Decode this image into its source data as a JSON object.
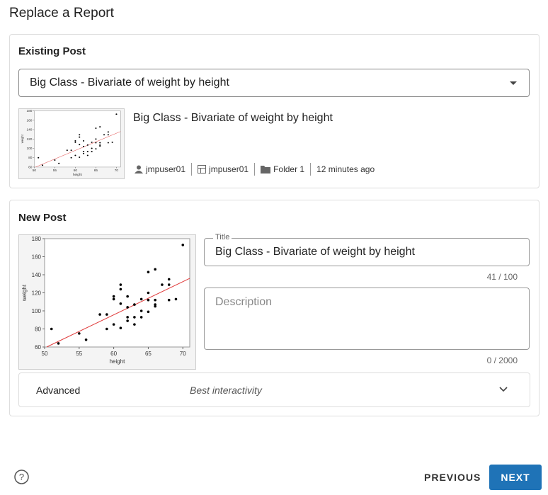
{
  "page": {
    "title": "Replace a Report",
    "existing": {
      "heading": "Existing Post",
      "select_value": "Big Class - Bivariate of weight by height",
      "post_title": "Big Class - Bivariate of weight by height",
      "meta": [
        "jmpuser01",
        "jmpuser01",
        "Folder 1",
        "12 minutes ago"
      ]
    },
    "new": {
      "heading": "New Post",
      "title_label": "Title",
      "title_value": "Big Class - Bivariate of weight by height",
      "title_counter": "41 / 100",
      "description_placeholder": "Description",
      "description_counter": "0 / 2000",
      "advanced": "Advanced",
      "advanced_value": "Best interactivity"
    },
    "buttons": {
      "previous": "PREVIOUS",
      "next": "NEXT"
    }
  },
  "chart_data": {
    "type": "scatter",
    "x_label": "height",
    "y_label": "weight",
    "color": "#000000",
    "x": [
      51,
      52,
      55,
      56,
      58,
      59,
      59,
      60,
      60,
      60,
      61,
      61,
      61,
      61,
      62,
      62,
      62,
      62,
      63,
      63,
      63,
      64,
      64,
      64,
      65,
      65,
      65,
      65,
      66,
      66,
      66,
      66,
      67,
      68,
      68,
      68,
      69,
      70
    ],
    "y": [
      80,
      64,
      75,
      68,
      96,
      96,
      80,
      116,
      113,
      85,
      129,
      124,
      108,
      81,
      116,
      104,
      93,
      89,
      107,
      93,
      85,
      113,
      100,
      93,
      143,
      120,
      112,
      99,
      146,
      112,
      107,
      105,
      129,
      135,
      129,
      112,
      113,
      173
    ],
    "xlim": [
      50,
      71
    ],
    "ylim": [
      60,
      180
    ],
    "xticks": [
      50,
      55,
      60,
      65,
      70
    ],
    "yticks": [
      60,
      80,
      100,
      120,
      140,
      160,
      180
    ],
    "fit": {
      "x": [
        50.3,
        71
      ],
      "y": [
        60,
        136
      ],
      "color": "#e03c3c"
    }
  }
}
